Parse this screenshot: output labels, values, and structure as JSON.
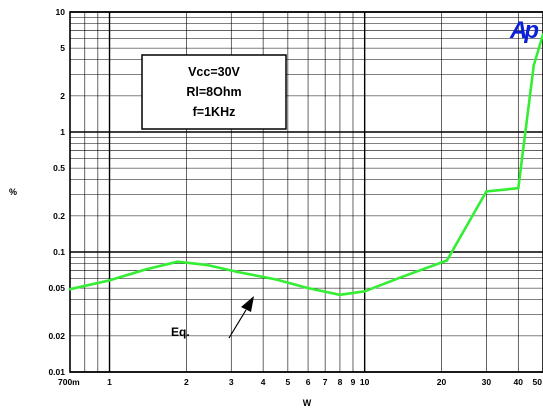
{
  "chart_data": {
    "type": "line",
    "xlabel": "W",
    "ylabel": "%",
    "x_scale": "log",
    "y_scale": "log",
    "xlim": [
      0.7,
      50
    ],
    "ylim": [
      0.01,
      10
    ],
    "grid": true,
    "x_ticks": [
      {
        "v": 0.7,
        "label": "700m"
      },
      {
        "v": 1,
        "label": "1"
      },
      {
        "v": 2,
        "label": "2"
      },
      {
        "v": 3,
        "label": "3"
      },
      {
        "v": 4,
        "label": "4"
      },
      {
        "v": 5,
        "label": "5"
      },
      {
        "v": 6,
        "label": "6"
      },
      {
        "v": 7,
        "label": "7"
      },
      {
        "v": 8,
        "label": "8"
      },
      {
        "v": 9,
        "label": "9"
      },
      {
        "v": 10,
        "label": "10"
      },
      {
        "v": 20,
        "label": "20"
      },
      {
        "v": 30,
        "label": "30"
      },
      {
        "v": 40,
        "label": "40"
      },
      {
        "v": 50,
        "label": "50"
      }
    ],
    "y_ticks": [
      {
        "v": 0.01,
        "label": "0.01"
      },
      {
        "v": 0.02,
        "label": "0.02"
      },
      {
        "v": 0.05,
        "label": "0.05"
      },
      {
        "v": 0.1,
        "label": "0.1"
      },
      {
        "v": 0.2,
        "label": "0.2"
      },
      {
        "v": 0.5,
        "label": "0.5"
      },
      {
        "v": 1,
        "label": "1"
      },
      {
        "v": 2,
        "label": "2"
      },
      {
        "v": 5,
        "label": "5"
      },
      {
        "v": 10,
        "label": "10"
      }
    ],
    "series": [
      {
        "color": "#33ee33",
        "x": [
          0.7,
          1.0,
          1.4,
          1.85,
          2.4,
          3.2,
          4.5,
          6.0,
          8.0,
          10.0,
          14.0,
          21.0,
          30.0,
          40.0,
          46.0,
          50.0
        ],
        "y": [
          0.049,
          0.058,
          0.072,
          0.083,
          0.078,
          0.068,
          0.059,
          0.05,
          0.044,
          0.047,
          0.062,
          0.085,
          0.32,
          0.34,
          3.6,
          6.5
        ]
      }
    ],
    "conditions": [
      "Vcc=30V",
      "Rl=8Ohm",
      "f=1KHz"
    ],
    "annotation": "Eq.",
    "logo": "Ap"
  }
}
